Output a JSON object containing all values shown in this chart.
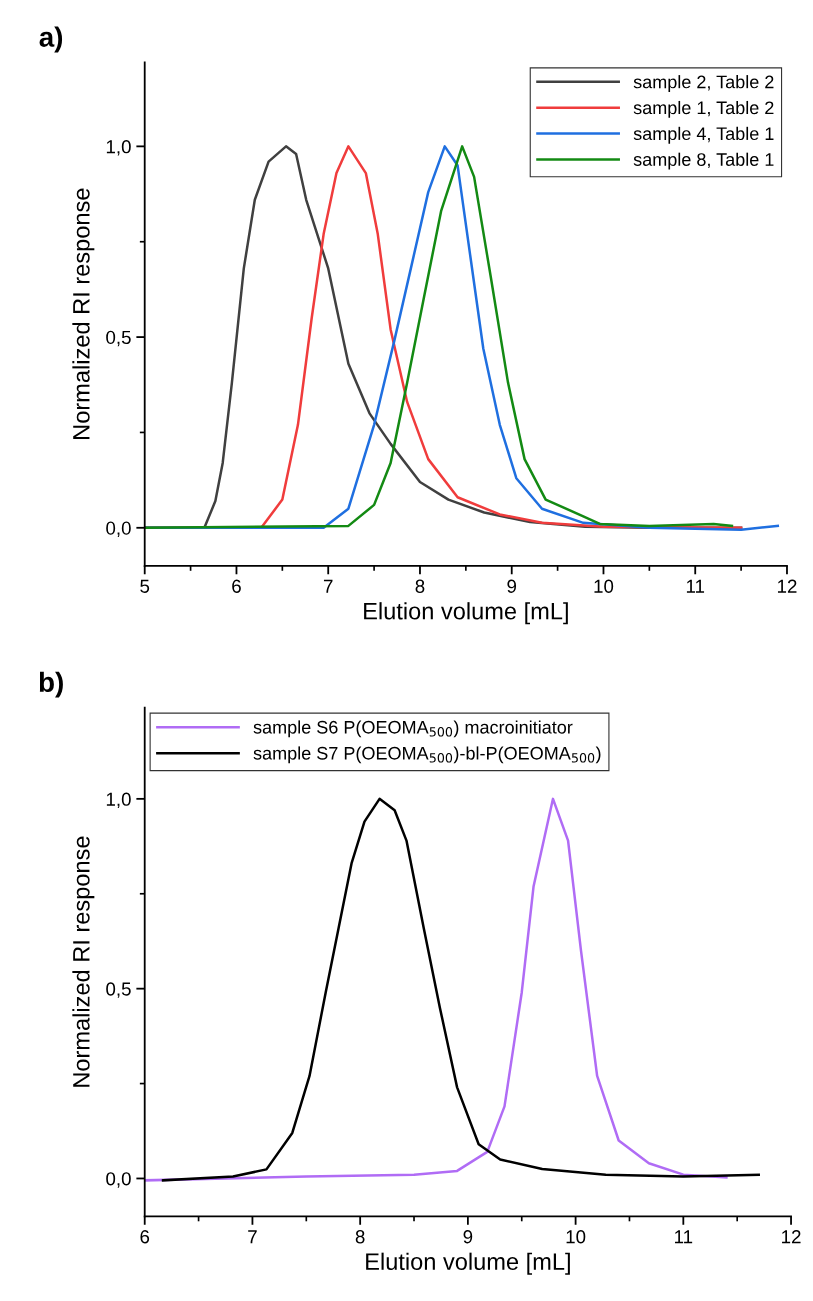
{
  "chart_data": [
    {
      "type": "line",
      "title": "a)",
      "xlabel": "Elution volume [mL]",
      "ylabel": "Normalized RI response",
      "xlim": [
        5,
        12
      ],
      "ylim": [
        -0.1,
        1.22
      ],
      "xticks": [
        5,
        {
          "value": 5.5,
          "label": null
        },
        6,
        {
          "value": 6.5,
          "label": null
        },
        7,
        {
          "value": 7.5,
          "label": null
        },
        8,
        {
          "value": 8.5,
          "label": null
        },
        9,
        {
          "value": 9.5,
          "label": null
        },
        10,
        {
          "value": 10.5,
          "label": null
        },
        11,
        {
          "value": 11.5,
          "label": null
        },
        12
      ],
      "yticks": [
        {
          "value": 0,
          "label": "0,0"
        },
        {
          "value": 0.25,
          "label": null
        },
        {
          "value": 0.5,
          "label": "0,5"
        },
        {
          "value": 0.75,
          "label": null
        },
        {
          "value": 1,
          "label": "1,0"
        }
      ],
      "grid": false,
      "legend": "top right",
      "series": [
        {
          "name": "sample 2, Table 2",
          "color": "#404040",
          "x": [
            5,
            5.65,
            5.77,
            5.85,
            5.95,
            6.08,
            6.2,
            6.35,
            6.54,
            6.65,
            6.76,
            7.0,
            7.22,
            7.45,
            7.68,
            8.0,
            8.31,
            8.7,
            9.2,
            9.8,
            10.5,
            11.5
          ],
          "values": [
            0,
            0,
            0.07,
            0.17,
            0.38,
            0.68,
            0.86,
            0.96,
            1.0,
            0.98,
            0.86,
            0.68,
            0.43,
            0.3,
            0.22,
            0.12,
            0.074,
            0.04,
            0.015,
            0.003,
            0,
            0
          ]
        },
        {
          "name": "sample 1, Table 2",
          "color": "#f03c3c",
          "x": [
            5,
            6.27,
            6.5,
            6.67,
            6.82,
            6.95,
            7.09,
            7.22,
            7.41,
            7.54,
            7.68,
            7.86,
            8.09,
            8.41,
            8.87,
            9.33,
            10,
            11.5
          ],
          "values": [
            0,
            0,
            0.074,
            0.27,
            0.55,
            0.77,
            0.93,
            1.0,
            0.93,
            0.77,
            0.52,
            0.33,
            0.18,
            0.08,
            0.035,
            0.013,
            0.003,
            0
          ]
        },
        {
          "name": "sample 4, Table 1",
          "color": "#1f6fe0",
          "x": [
            5,
            6.95,
            7.22,
            7.5,
            7.72,
            7.91,
            8.09,
            8.27,
            8.41,
            8.55,
            8.69,
            8.87,
            9.05,
            9.33,
            9.78,
            10.5,
            11.5,
            11.9
          ],
          "values": [
            0,
            0,
            0.05,
            0.27,
            0.49,
            0.69,
            0.88,
            1.0,
            0.95,
            0.71,
            0.47,
            0.27,
            0.13,
            0.05,
            0.013,
            0,
            -0.005,
            0.005
          ]
        },
        {
          "name": "sample 8, Table 1",
          "color": "#138a13",
          "x": [
            5,
            7.22,
            7.5,
            7.68,
            7.86,
            8.04,
            8.23,
            8.46,
            8.59,
            8.77,
            8.96,
            9.14,
            9.37,
            9.78,
            9.96,
            10.5,
            11.2,
            11.4
          ],
          "values": [
            0,
            0.005,
            0.06,
            0.17,
            0.38,
            0.6,
            0.83,
            1.0,
            0.92,
            0.66,
            0.38,
            0.18,
            0.074,
            0.03,
            0.01,
            0.005,
            0.01,
            0.005
          ]
        }
      ]
    },
    {
      "type": "line",
      "title": "b)",
      "xlabel": "Elution volume [mL]",
      "ylabel": "Normalized RI response",
      "xlim": [
        6,
        12
      ],
      "ylim": [
        -0.1,
        1.24
      ],
      "xticks": [
        6,
        {
          "value": 6.5,
          "label": null
        },
        7,
        {
          "value": 7.5,
          "label": null
        },
        8,
        {
          "value": 8.5,
          "label": null
        },
        9,
        {
          "value": 9.5,
          "label": null
        },
        10,
        {
          "value": 10.5,
          "label": null
        },
        11,
        {
          "value": 11.5,
          "label": null
        },
        12
      ],
      "yticks": [
        {
          "value": 0,
          "label": "0,0"
        },
        {
          "value": 0.25,
          "label": null
        },
        {
          "value": 0.5,
          "label": "0,5"
        },
        {
          "value": 0.75,
          "label": null
        },
        {
          "value": 1,
          "label": "1,0"
        }
      ],
      "grid": false,
      "legend": "top left",
      "series": [
        {
          "name": "sample S6 P(OEOMA$_{500}$) macroinitiator",
          "color": "#b06cf5",
          "x": [
            6,
            7.5,
            8.5,
            8.9,
            9.18,
            9.34,
            9.5,
            9.61,
            9.79,
            9.93,
            10.05,
            10.2,
            10.4,
            10.68,
            11.0,
            11.4
          ],
          "values": [
            -0.005,
            0.005,
            0.01,
            0.02,
            0.07,
            0.19,
            0.49,
            0.77,
            1.0,
            0.89,
            0.6,
            0.27,
            0.1,
            0.04,
            0.01,
            0.003
          ]
        },
        {
          "name": "sample S7 P(OEOMA$_{500}$)-bl-P(OEOMA$_{500}$)",
          "color": "#000000",
          "x": [
            6.17,
            6.82,
            7.13,
            7.37,
            7.53,
            7.68,
            7.8,
            7.92,
            8.04,
            8.18,
            8.32,
            8.43,
            8.59,
            8.74,
            8.9,
            9.1,
            9.3,
            9.69,
            10.28,
            11.0,
            11.7
          ],
          "values": [
            -0.005,
            0.005,
            0.024,
            0.12,
            0.27,
            0.49,
            0.66,
            0.83,
            0.94,
            1.0,
            0.97,
            0.89,
            0.66,
            0.45,
            0.24,
            0.09,
            0.05,
            0.025,
            0.01,
            0.005,
            0.01
          ]
        }
      ]
    }
  ]
}
